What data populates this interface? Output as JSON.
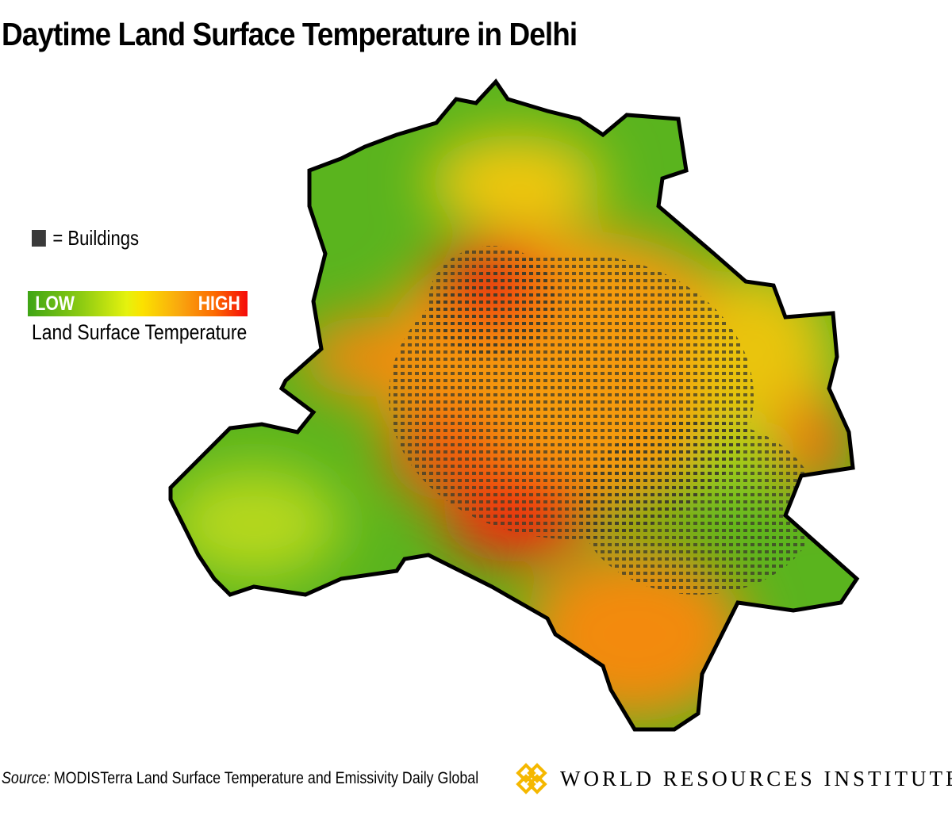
{
  "title": "Daytime Land Surface Temperature in Delhi",
  "legend": {
    "buildings_label": "= Buildings",
    "buildings_color": "#3a3a3a",
    "ramp_low": "LOW",
    "ramp_high": "HIGH",
    "ramp_label": "Land Surface Temperature",
    "ramp_colors": [
      "#3fa515",
      "#8fcc12",
      "#fbe200",
      "#fc6a00",
      "#f50a0a"
    ]
  },
  "source": {
    "prefix": "Source:",
    "text": "MODISTerra Land Surface Temperature and Emissivity Daily Global"
  },
  "logo": {
    "text": "WORLD RESOURCES INSTITUTE",
    "color": "#f5b800"
  }
}
